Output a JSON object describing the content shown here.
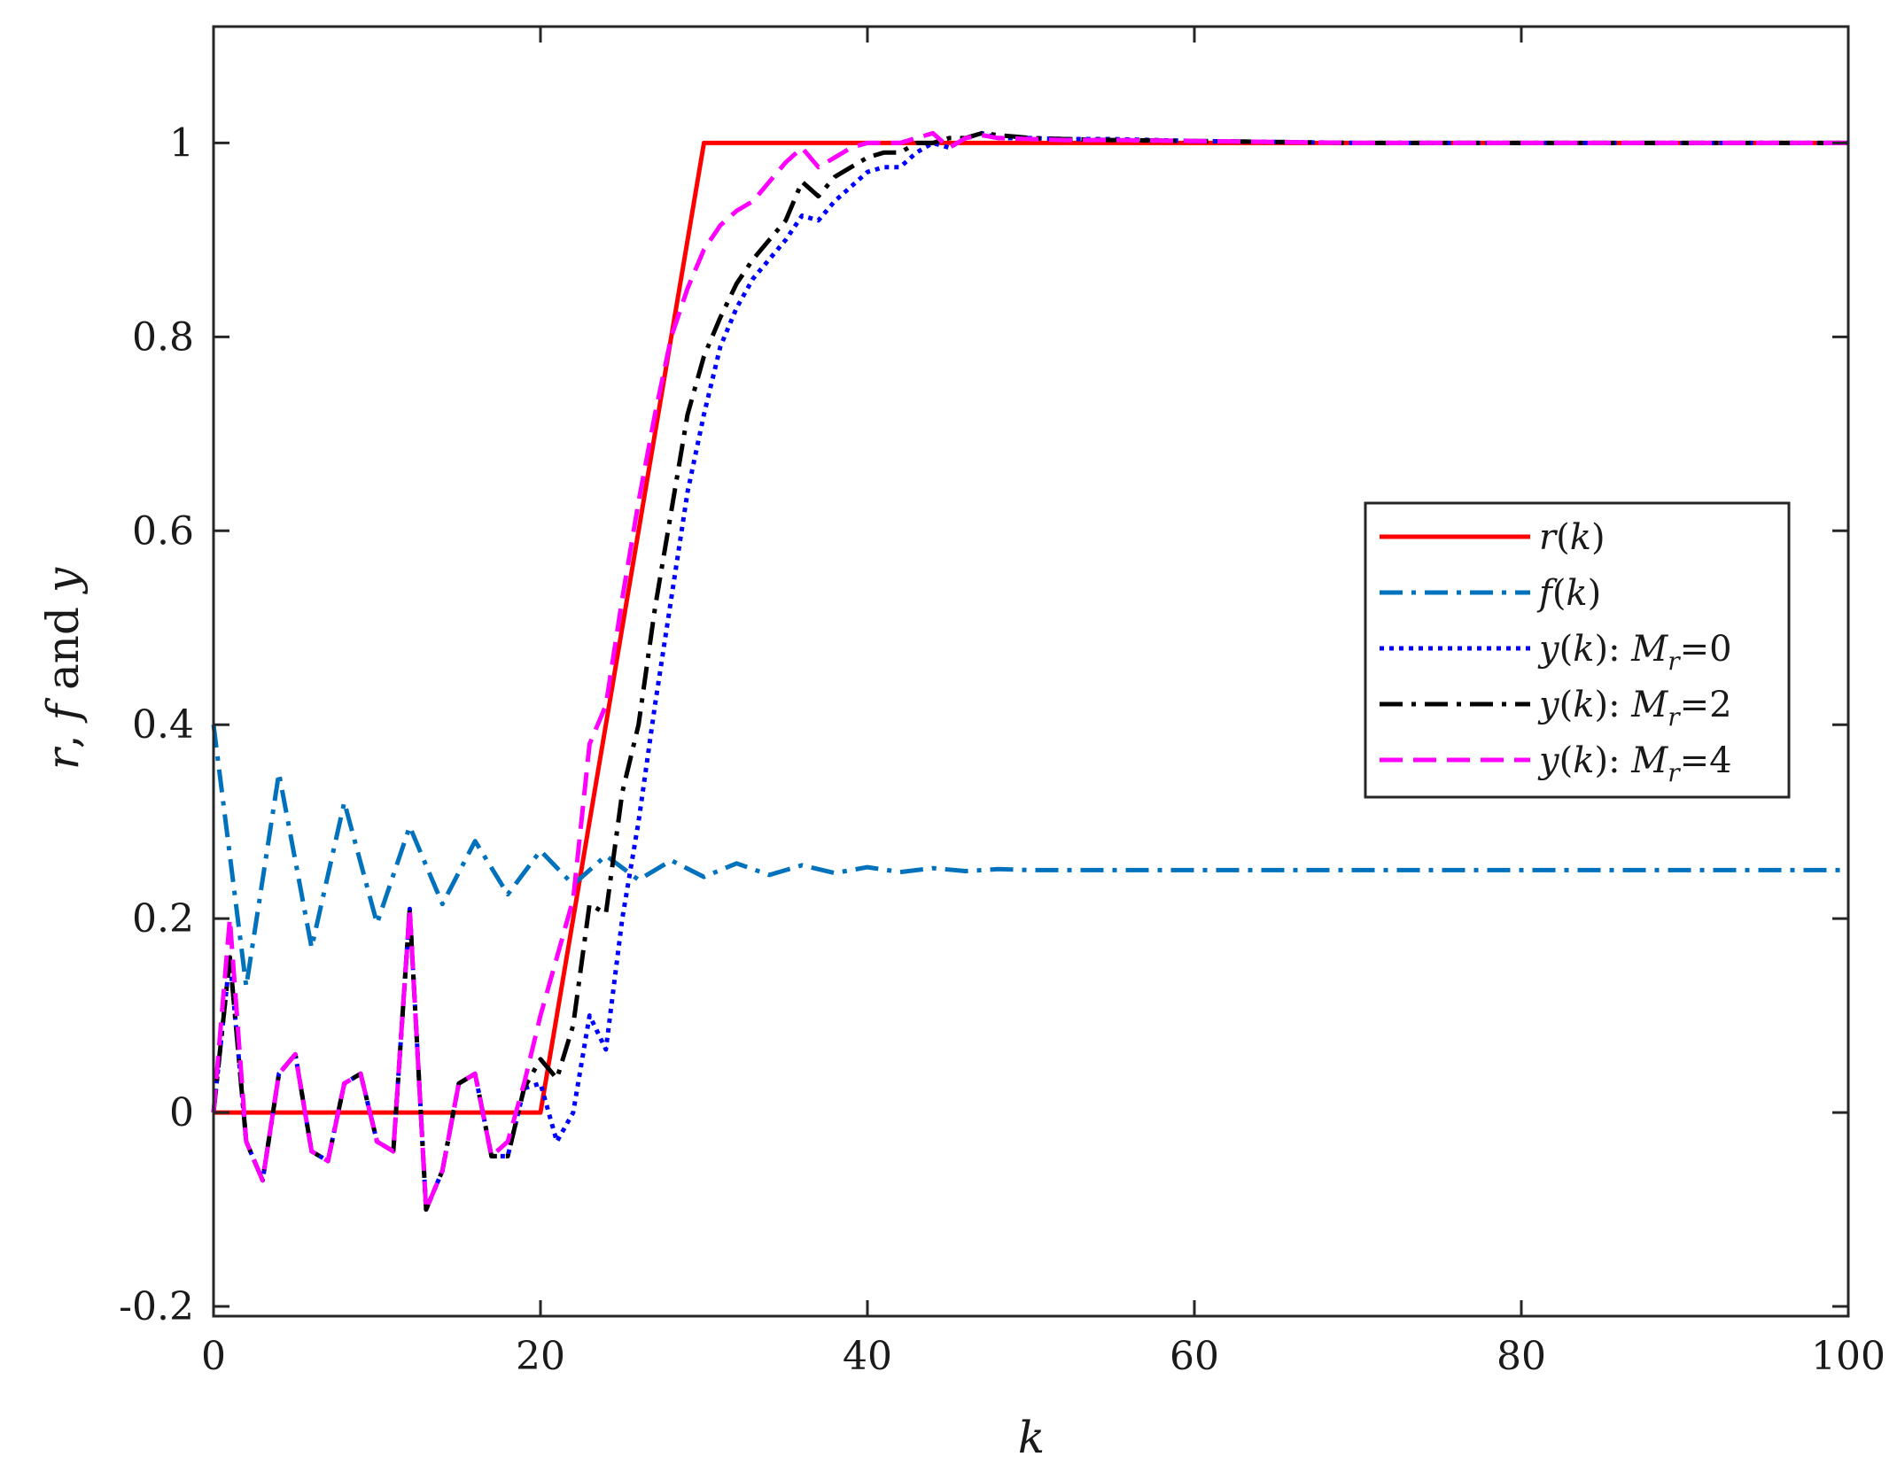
{
  "chart_data": {
    "type": "line",
    "xlabel": "k",
    "ylabel": "r, f and y",
    "xlim": [
      0,
      100
    ],
    "ylim": [
      -0.21,
      1.12
    ],
    "xticks": [
      0,
      20,
      40,
      60,
      80,
      100
    ],
    "yticks": [
      -0.2,
      0,
      0.2,
      0.4,
      0.6,
      0.8,
      1
    ],
    "xtick_labels": [
      "0",
      "20",
      "40",
      "60",
      "80",
      "100"
    ],
    "ytick_labels": [
      "-0.2",
      "0",
      "0.2",
      "0.4",
      "0.6",
      "0.8",
      "1"
    ],
    "grid": false,
    "legend_position": "center-right",
    "series": [
      {
        "name": "r(k)",
        "color": "#ff0000",
        "style": "solid",
        "x": [
          0,
          20,
          30,
          100
        ],
        "y": [
          0,
          0,
          1,
          1
        ]
      },
      {
        "name": "f(k)",
        "color": "#0072bd",
        "style": "dashdot",
        "x": [
          0,
          2,
          4,
          6,
          8,
          10,
          12,
          14,
          16,
          18,
          20,
          22,
          24,
          26,
          28,
          30,
          32,
          34,
          36,
          38,
          40,
          42,
          44,
          46,
          48,
          50,
          55,
          60,
          70,
          80,
          90,
          100
        ],
        "y": [
          0.4,
          0.13,
          0.35,
          0.17,
          0.32,
          0.195,
          0.295,
          0.215,
          0.28,
          0.225,
          0.27,
          0.235,
          0.265,
          0.24,
          0.26,
          0.243,
          0.257,
          0.245,
          0.255,
          0.247,
          0.253,
          0.248,
          0.252,
          0.249,
          0.251,
          0.25,
          0.25,
          0.25,
          0.25,
          0.25,
          0.25,
          0.25
        ]
      },
      {
        "name": "y(k):  Mr=0",
        "color": "#0000ff",
        "style": "dotted",
        "x": [
          0,
          1,
          2,
          3,
          4,
          5,
          6,
          7,
          8,
          9,
          10,
          11,
          12,
          13,
          14,
          15,
          16,
          17,
          18,
          19,
          20,
          21,
          22,
          23,
          24,
          25,
          26,
          27,
          28,
          29,
          30,
          31,
          32,
          33,
          34,
          35,
          36,
          37,
          38,
          39,
          40,
          41,
          42,
          43,
          44,
          45,
          46,
          47,
          48,
          50,
          52,
          55,
          60,
          70,
          80,
          100
        ],
        "y": [
          0,
          0.16,
          -0.03,
          -0.07,
          0.04,
          0.06,
          -0.04,
          -0.05,
          0.03,
          0.04,
          -0.03,
          -0.04,
          0.21,
          -0.1,
          -0.06,
          0.03,
          0.04,
          -0.045,
          -0.045,
          0.025,
          0.03,
          -0.03,
          0.0,
          0.1,
          0.065,
          0.2,
          0.3,
          0.42,
          0.53,
          0.64,
          0.72,
          0.79,
          0.83,
          0.86,
          0.88,
          0.9,
          0.925,
          0.92,
          0.94,
          0.955,
          0.97,
          0.975,
          0.975,
          0.99,
          1.0,
          0.995,
          1.005,
          1.01,
          1.005,
          1.005,
          1.004,
          1.004,
          1.002,
          1.0,
          1.0,
          1.0
        ]
      },
      {
        "name": "y(k):  Mr=2",
        "color": "#000000",
        "style": "dashdot",
        "x": [
          0,
          1,
          2,
          3,
          4,
          5,
          6,
          7,
          8,
          9,
          10,
          11,
          12,
          13,
          14,
          15,
          16,
          17,
          18,
          19,
          20,
          21,
          22,
          23,
          24,
          25,
          26,
          27,
          28,
          29,
          30,
          31,
          32,
          33,
          34,
          35,
          36,
          37,
          38,
          39,
          40,
          41,
          42,
          43,
          44,
          45,
          46,
          47,
          48,
          50,
          52,
          55,
          60,
          70,
          80,
          100
        ],
        "y": [
          0,
          0.16,
          -0.03,
          -0.07,
          0.04,
          0.06,
          -0.04,
          -0.05,
          0.03,
          0.04,
          -0.03,
          -0.04,
          0.21,
          -0.1,
          -0.06,
          0.03,
          0.04,
          -0.045,
          -0.045,
          0.025,
          0.055,
          0.035,
          0.09,
          0.215,
          0.205,
          0.33,
          0.4,
          0.52,
          0.62,
          0.72,
          0.78,
          0.82,
          0.855,
          0.88,
          0.9,
          0.92,
          0.96,
          0.945,
          0.965,
          0.975,
          0.985,
          0.99,
          0.99,
          1.0,
          1.0,
          1.005,
          1.005,
          1.01,
          1.008,
          1.005,
          1.004,
          1.003,
          1.002,
          1.0,
          1.0,
          1.0
        ]
      },
      {
        "name": "y(k):  Mr=4",
        "color": "#ff00ff",
        "style": "dashed",
        "x": [
          0,
          1,
          2,
          3,
          4,
          5,
          6,
          7,
          8,
          9,
          10,
          11,
          12,
          13,
          14,
          15,
          16,
          17,
          18,
          19,
          20,
          21,
          22,
          23,
          24,
          25,
          26,
          27,
          28,
          29,
          30,
          31,
          32,
          33,
          34,
          35,
          36,
          37,
          38,
          39,
          40,
          41,
          42,
          43,
          44,
          45,
          46,
          47,
          48,
          50,
          52,
          55,
          60,
          70,
          80,
          100
        ],
        "y": [
          0,
          0.2,
          -0.03,
          -0.07,
          0.04,
          0.06,
          -0.04,
          -0.05,
          0.03,
          0.04,
          -0.03,
          -0.04,
          0.21,
          -0.1,
          -0.06,
          0.03,
          0.04,
          -0.045,
          -0.03,
          0.03,
          0.1,
          0.16,
          0.22,
          0.38,
          0.42,
          0.53,
          0.63,
          0.72,
          0.8,
          0.85,
          0.89,
          0.915,
          0.93,
          0.94,
          0.96,
          0.98,
          0.995,
          0.975,
          0.985,
          0.995,
          1.0,
          1.0,
          1.0,
          1.005,
          1.01,
          0.995,
          1.005,
          1.008,
          1.005,
          1.004,
          1.003,
          1.003,
          1.002,
          1.0,
          1.0,
          1.0
        ]
      }
    ],
    "legend_entries": [
      {
        "fn": "r",
        "arg": "k",
        "suffix": ""
      },
      {
        "fn": "f",
        "arg": "k",
        "suffix": ""
      },
      {
        "fn": "y",
        "arg": "k",
        "suffix": "M",
        "sub": "r",
        "value": "=0"
      },
      {
        "fn": "y",
        "arg": "k",
        "suffix": "M",
        "sub": "r",
        "value": "=2"
      },
      {
        "fn": "y",
        "arg": "k",
        "suffix": "M",
        "sub": "r",
        "value": "=4"
      }
    ]
  }
}
